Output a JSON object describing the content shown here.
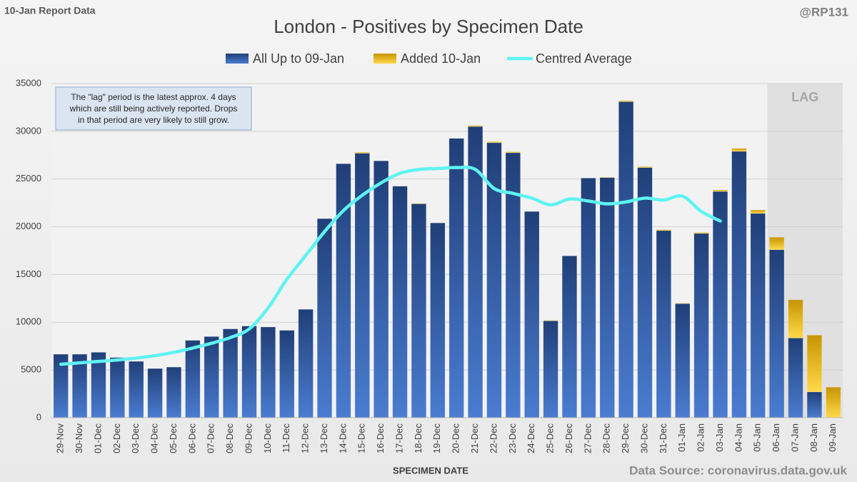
{
  "chart_data": {
    "type": "stacked_bar_line",
    "corner_left": "10-Jan Report Data",
    "corner_right": "@RP131",
    "title": "London - Positives by Specimen Date",
    "x_label": "SPECIMEN DATE",
    "source": "Data Source: coronavirus.data.gov.uk",
    "annotation": [
      "The \"lag\" period is the latest approx. 4 days",
      "which are still being actively reported. Drops",
      "in that period are very likely to still grow."
    ],
    "shaded_region": {
      "label": "LAG",
      "from": "06-Jan",
      "to": "09-Jan"
    },
    "categories": [
      "29-Nov",
      "30-Nov",
      "01-Dec",
      "02-Dec",
      "03-Dec",
      "04-Dec",
      "05-Dec",
      "06-Dec",
      "07-Dec",
      "08-Dec",
      "09-Dec",
      "10-Dec",
      "11-Dec",
      "12-Dec",
      "13-Dec",
      "14-Dec",
      "15-Dec",
      "16-Dec",
      "17-Dec",
      "18-Dec",
      "19-Dec",
      "20-Dec",
      "21-Dec",
      "22-Dec",
      "23-Dec",
      "24-Dec",
      "25-Dec",
      "26-Dec",
      "27-Dec",
      "28-Dec",
      "29-Dec",
      "30-Dec",
      "31-Dec",
      "01-Jan",
      "02-Jan",
      "03-Jan",
      "04-Jan",
      "05-Jan",
      "06-Jan",
      "07-Jan",
      "08-Jan",
      "09-Jan"
    ],
    "series": [
      {
        "name": "All Up to 09-Jan",
        "color": "#2f5597",
        "kind": "bar",
        "values": [
          6650,
          6650,
          6850,
          6300,
          5900,
          5150,
          5300,
          8100,
          8500,
          9300,
          9600,
          9500,
          9150,
          11350,
          20850,
          26600,
          27700,
          26900,
          24250,
          22400,
          20400,
          29250,
          30500,
          28800,
          27750,
          21600,
          10150,
          16950,
          25100,
          25150,
          33100,
          26200,
          19600,
          11950,
          19300,
          23700,
          27900,
          21400,
          17600,
          8350,
          2700,
          0
        ]
      },
      {
        "name": "Added 10-Jan",
        "color": "#e6b514",
        "kind": "bar",
        "values": [
          0,
          0,
          0,
          0,
          0,
          0,
          0,
          0,
          0,
          0,
          0,
          0,
          0,
          0,
          0,
          0,
          100,
          0,
          0,
          50,
          0,
          0,
          100,
          100,
          100,
          0,
          50,
          0,
          0,
          50,
          100,
          100,
          100,
          50,
          100,
          150,
          300,
          350,
          1300,
          4000,
          5950,
          3200
        ]
      },
      {
        "name": "Centred Average",
        "color": "#5ff3f3",
        "kind": "line",
        "values": [
          5600,
          5750,
          5900,
          6050,
          6250,
          6500,
          6850,
          7300,
          7800,
          8400,
          9300,
          11500,
          14500,
          17000,
          19500,
          21700,
          23300,
          24600,
          25600,
          26000,
          26100,
          26200,
          26000,
          24000,
          23500,
          23000,
          22300,
          22900,
          22700,
          22400,
          22600,
          23000,
          22800,
          23200,
          21600,
          20600,
          null,
          null,
          null,
          null,
          null,
          null
        ]
      }
    ],
    "ylim": [
      0,
      35000
    ],
    "yticks": [
      0,
      5000,
      10000,
      15000,
      20000,
      25000,
      30000,
      35000
    ],
    "grid": true
  }
}
